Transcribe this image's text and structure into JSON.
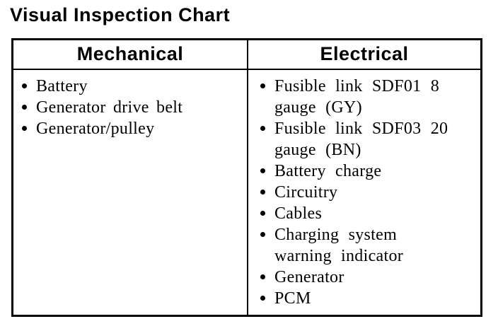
{
  "page_title": "Visual Inspection Chart",
  "table": {
    "columns": [
      {
        "header": "Mechanical",
        "items": [
          {
            "lines": [
              "Battery"
            ]
          },
          {
            "lines": [
              "Generator drive belt"
            ]
          },
          {
            "lines": [
              "Generator/pulley"
            ]
          }
        ]
      },
      {
        "header": "Electrical",
        "items": [
          {
            "lines": [
              "Fusible link SDF01 8",
              "gauge (GY)"
            ]
          },
          {
            "lines": [
              "Fusible link SDF03 20",
              "gauge (BN)"
            ]
          },
          {
            "lines": [
              "Battery charge"
            ]
          },
          {
            "lines": [
              "Circuitry"
            ]
          },
          {
            "lines": [
              "Cables"
            ]
          },
          {
            "lines": [
              "Charging system",
              "warning indicator"
            ]
          },
          {
            "lines": [
              "Generator"
            ]
          },
          {
            "lines": [
              "PCM"
            ]
          }
        ]
      }
    ]
  },
  "colors": {
    "background": "#ffffff",
    "text": "#000000",
    "border": "#000000"
  }
}
